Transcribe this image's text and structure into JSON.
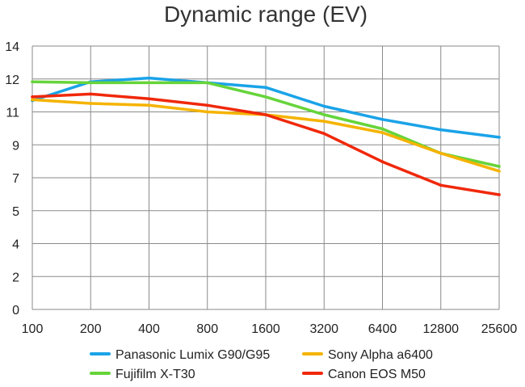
{
  "chart_data": {
    "type": "line",
    "title": "Dynamic range (EV)",
    "xlabel": "",
    "ylabel": "",
    "categories": [
      "100",
      "200",
      "400",
      "800",
      "1600",
      "3200",
      "6400",
      "12800",
      "25600"
    ],
    "y_ticks": [
      "0",
      "2",
      "4",
      "5",
      "7",
      "9",
      "11",
      "12",
      "14"
    ],
    "ylim": [
      0,
      14
    ],
    "grid": true,
    "legend_position": "bottom",
    "series": [
      {
        "name": "Panasonic Lumix G90/G95",
        "color": "#1aa3e8",
        "values": [
          11.1,
          12.1,
          12.3,
          12.05,
          11.8,
          10.8,
          10.1,
          9.55,
          9.15
        ]
      },
      {
        "name": "Fujifilm X-T30",
        "color": "#66d43a",
        "values": [
          12.1,
          12.05,
          12.05,
          12.05,
          11.3,
          10.35,
          9.6,
          8.3,
          7.6
        ]
      },
      {
        "name": "Sony Alpha a6400",
        "color": "#f5b300",
        "values": [
          11.15,
          10.95,
          10.85,
          10.5,
          10.35,
          10.0,
          9.4,
          8.3,
          7.35
        ]
      },
      {
        "name": "Canon EOS M50",
        "color": "#f0280a",
        "values": [
          11.3,
          11.45,
          11.2,
          10.85,
          10.35,
          9.35,
          7.85,
          6.6,
          6.1
        ]
      }
    ]
  }
}
